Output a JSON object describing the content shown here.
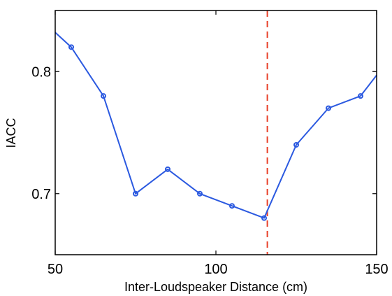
{
  "chart_data": {
    "type": "line",
    "title": "",
    "xlabel": "Inter-Loudspeaker Distance (cm)",
    "ylabel": "IACC",
    "xlim": [
      50,
      150
    ],
    "ylim": [
      0.65,
      0.85
    ],
    "xticks": [
      50,
      100,
      150
    ],
    "xtick_labels": [
      "50",
      "100",
      "150"
    ],
    "yticks": [
      0.7,
      0.8
    ],
    "ytick_labels": [
      "0.7",
      "0.8"
    ],
    "grid": false,
    "legend": "none",
    "series": [
      {
        "color": "#2b59e0",
        "marker": "circle",
        "x": [
          50,
          55,
          65,
          75,
          85,
          95,
          105,
          115,
          125,
          135,
          145,
          150
        ],
        "y": [
          0.832,
          0.82,
          0.78,
          0.7,
          0.72,
          0.7,
          0.69,
          0.68,
          0.74,
          0.77,
          0.78,
          0.797
        ],
        "markers_at": [
          55,
          65,
          75,
          85,
          95,
          105,
          115,
          125,
          135,
          145
        ]
      }
    ],
    "reference_line": {
      "orientation": "vertical",
      "x": 116,
      "color": "#e8412a",
      "style": "dashed"
    }
  }
}
